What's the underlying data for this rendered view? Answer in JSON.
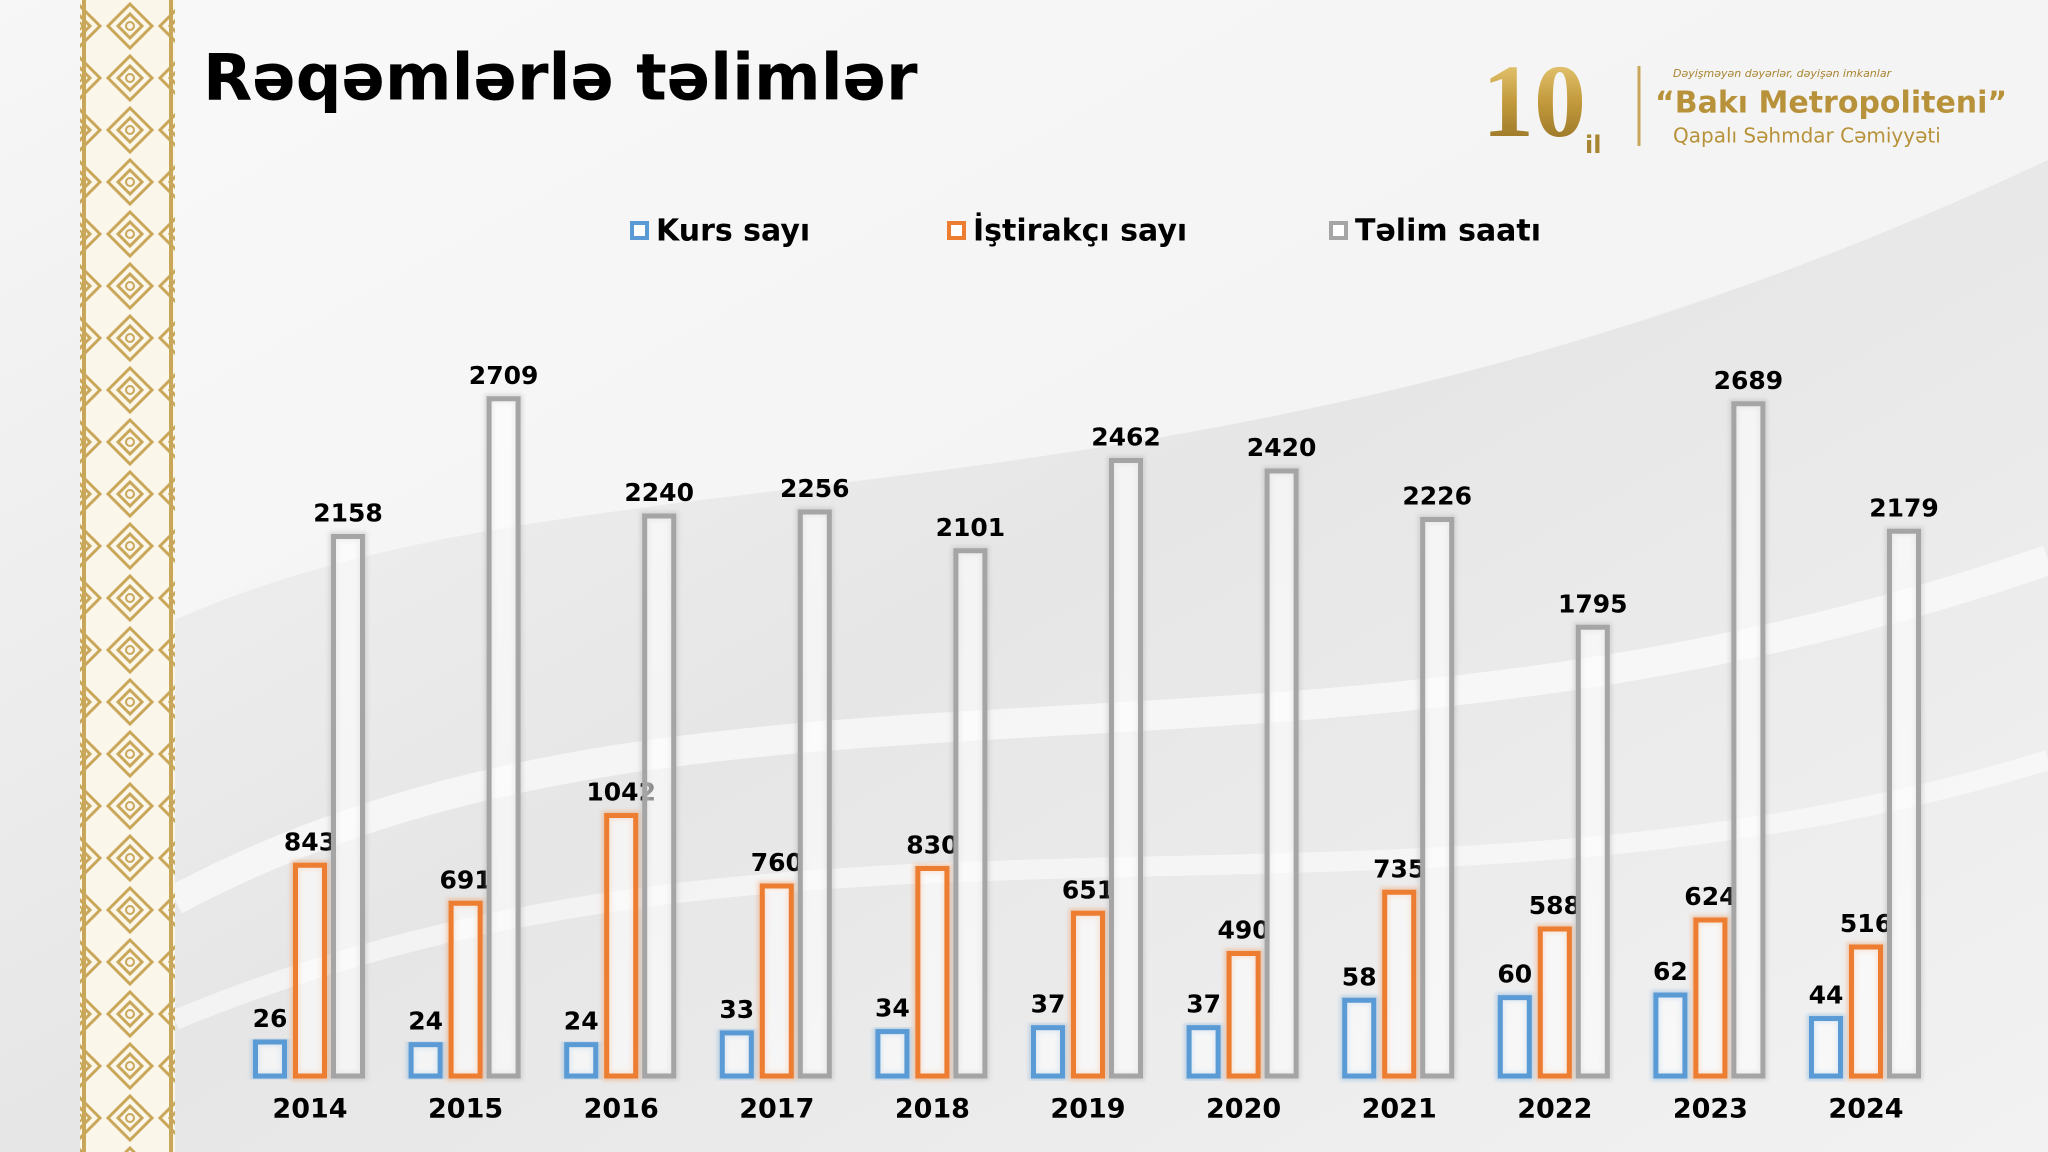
{
  "chart_data": {
    "type": "bar",
    "title": "Rəqəmlərlə təlimlər",
    "categories": [
      "2014",
      "2015",
      "2016",
      "2017",
      "2018",
      "2019",
      "2020",
      "2021",
      "2022",
      "2023",
      "2024"
    ],
    "series": [
      {
        "name": "Kurs sayı",
        "color": "#5b9bd5",
        "values": [
          26,
          24,
          24,
          33,
          34,
          37,
          37,
          58,
          60,
          62,
          44
        ]
      },
      {
        "name": "İştirakçı sayı",
        "color": "#ed7d31",
        "values": [
          843,
          691,
          1042,
          760,
          830,
          651,
          490,
          735,
          588,
          624,
          516
        ]
      },
      {
        "name": "Təlim saatı",
        "color": "#a5a5a5",
        "values": [
          2158,
          2709,
          2240,
          2256,
          2101,
          2462,
          2420,
          2226,
          1795,
          2689,
          2179
        ]
      }
    ]
  },
  "logo": {
    "number": "10",
    "unit": "il",
    "slogan": "Dəyişməyən dəyərlər, dəyişən imkanlar",
    "name": "“Bakı Metropoliteni”",
    "company": "Qapalı Səhmdar Cəmiyyəti"
  }
}
